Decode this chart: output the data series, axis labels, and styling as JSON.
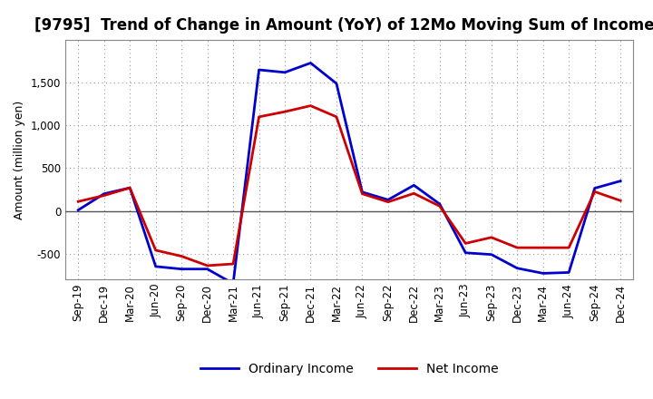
{
  "title": "[9795]  Trend of Change in Amount (YoY) of 12Mo Moving Sum of Incomes",
  "ylabel": "Amount (million yen)",
  "x_labels": [
    "Sep-19",
    "Dec-19",
    "Mar-20",
    "Jun-20",
    "Sep-20",
    "Dec-20",
    "Mar-21",
    "Jun-21",
    "Sep-21",
    "Dec-21",
    "Mar-22",
    "Jun-22",
    "Sep-22",
    "Dec-22",
    "Mar-23",
    "Jun-23",
    "Sep-23",
    "Dec-23",
    "Mar-24",
    "Jun-24",
    "Sep-24",
    "Dec-24"
  ],
  "ordinary_income": [
    10,
    200,
    270,
    -650,
    -680,
    -680,
    -850,
    1650,
    1620,
    1730,
    1490,
    220,
    130,
    300,
    80,
    -490,
    -510,
    -670,
    -730,
    -720,
    265,
    350
  ],
  "net_income": [
    110,
    180,
    270,
    -460,
    -530,
    -640,
    -620,
    1100,
    1160,
    1230,
    1100,
    200,
    105,
    205,
    55,
    -380,
    -310,
    -430,
    -430,
    -430,
    225,
    120
  ],
  "ordinary_income_color": "#0000cc",
  "net_income_color": "#cc0000",
  "ylim": [
    -800,
    2000
  ],
  "yticks": [
    -500,
    0,
    500,
    1000,
    1500
  ],
  "background_color": "#ffffff",
  "grid_color": "#999999",
  "linewidth": 2.0,
  "title_fontsize": 12,
  "legend_fontsize": 10,
  "axis_fontsize": 8.5
}
